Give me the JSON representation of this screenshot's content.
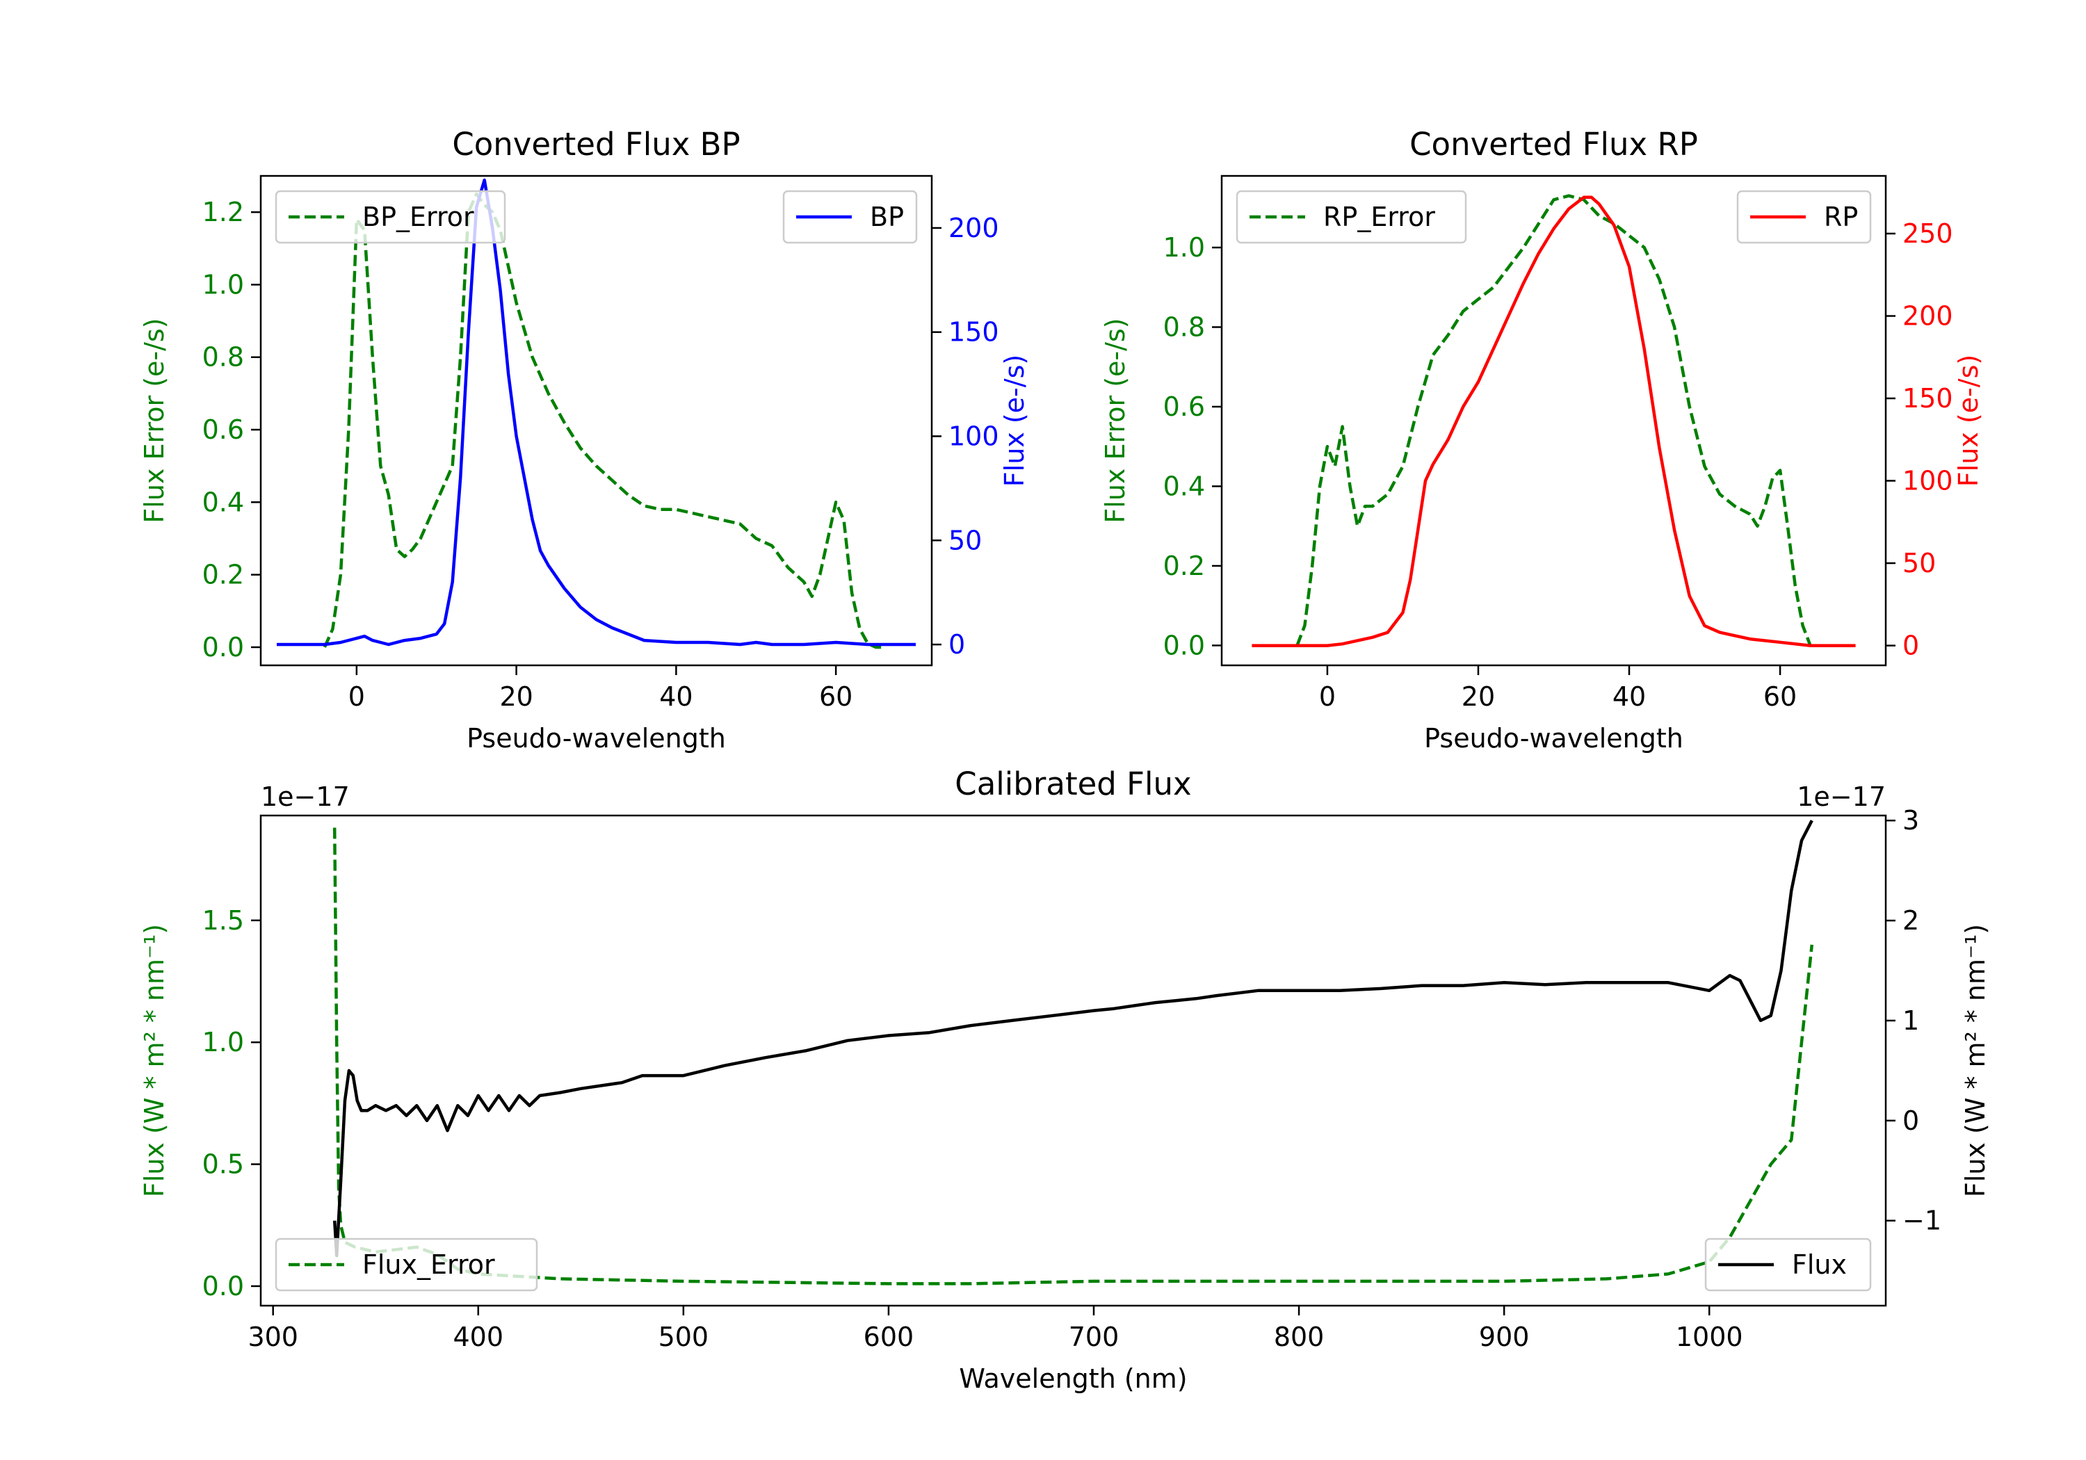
{
  "chart_data": [
    {
      "id": "bp",
      "type": "line",
      "title": "Converted Flux BP",
      "xlabel": "Pseudo-wavelength",
      "xlim": [
        -12,
        72
      ],
      "xticks": [
        0,
        20,
        40,
        60
      ],
      "xtick_labels": [
        "0",
        "20",
        "40",
        "60"
      ],
      "left_axis": {
        "label": "Flux Error (e-/s)",
        "color": "#008000",
        "ylim": [
          -0.05,
          1.3
        ],
        "ticks": [
          0.0,
          0.2,
          0.4,
          0.6,
          0.8,
          1.0,
          1.2
        ],
        "tick_labels": [
          "0.0",
          "0.2",
          "0.4",
          "0.6",
          "0.8",
          "1.0",
          "1.2"
        ]
      },
      "right_axis": {
        "label": "Flux (e-/s)",
        "color": "#0000ff",
        "ylim": [
          -10,
          225
        ],
        "ticks": [
          0,
          50,
          100,
          150,
          200
        ],
        "tick_labels": [
          "0",
          "50",
          "100",
          "150",
          "200"
        ]
      },
      "series": [
        {
          "name": "BP_Error",
          "axis": "left",
          "color": "#008000",
          "style": "dashed",
          "x": [
            -4,
            -3,
            -2,
            -1,
            0,
            1,
            2,
            3,
            4,
            5,
            6,
            7,
            8,
            9,
            10,
            11,
            12,
            13,
            14,
            15,
            16,
            17,
            18,
            19,
            20,
            22,
            24,
            26,
            28,
            30,
            32,
            34,
            36,
            38,
            40,
            42,
            44,
            46,
            48,
            50,
            52,
            54,
            56,
            57,
            58,
            59,
            60,
            61,
            62,
            63,
            64,
            65,
            66
          ],
          "y": [
            0.0,
            0.05,
            0.2,
            0.6,
            1.18,
            1.15,
            0.8,
            0.5,
            0.42,
            0.27,
            0.25,
            0.27,
            0.3,
            0.35,
            0.4,
            0.45,
            0.5,
            0.8,
            1.2,
            1.25,
            1.22,
            1.2,
            1.15,
            1.05,
            0.95,
            0.8,
            0.7,
            0.62,
            0.55,
            0.5,
            0.46,
            0.42,
            0.39,
            0.38,
            0.38,
            0.37,
            0.36,
            0.35,
            0.34,
            0.3,
            0.28,
            0.22,
            0.18,
            0.14,
            0.2,
            0.3,
            0.4,
            0.35,
            0.15,
            0.05,
            0.01,
            0.0,
            0.0
          ]
        },
        {
          "name": "BP",
          "axis": "right",
          "color": "#0000ff",
          "style": "solid",
          "x": [
            -10,
            -8,
            -6,
            -4,
            -2,
            0,
            1,
            2,
            3,
            4,
            6,
            8,
            10,
            11,
            12,
            13,
            14,
            15,
            16,
            17,
            18,
            19,
            20,
            21,
            22,
            23,
            24,
            26,
            28,
            30,
            32,
            34,
            36,
            40,
            44,
            48,
            50,
            52,
            56,
            60,
            64,
            68,
            70
          ],
          "y": [
            0,
            0,
            0,
            0,
            1,
            3,
            4,
            2,
            1,
            0,
            2,
            3,
            5,
            10,
            30,
            80,
            150,
            210,
            223,
            200,
            170,
            130,
            100,
            80,
            60,
            45,
            38,
            27,
            18,
            12,
            8,
            5,
            2,
            1,
            1,
            0,
            1,
            0,
            0,
            1,
            0,
            0,
            0
          ]
        }
      ],
      "legend_left": "upper left",
      "legend_right": "upper right"
    },
    {
      "id": "rp",
      "type": "line",
      "title": "Converted Flux RP",
      "xlabel": "Pseudo-wavelength",
      "xlim": [
        -14,
        74
      ],
      "xticks": [
        0,
        20,
        40,
        60
      ],
      "xtick_labels": [
        "0",
        "20",
        "40",
        "60"
      ],
      "left_axis": {
        "label": "Flux Error (e-/s)",
        "color": "#008000",
        "ylim": [
          -0.05,
          1.18
        ],
        "ticks": [
          0.0,
          0.2,
          0.4,
          0.6,
          0.8,
          1.0
        ],
        "tick_labels": [
          "0.0",
          "0.2",
          "0.4",
          "0.6",
          "0.8",
          "1.0"
        ]
      },
      "right_axis": {
        "label": "Flux (e-/s)",
        "color": "#ff0000",
        "ylim": [
          -12,
          285
        ],
        "ticks": [
          0,
          50,
          100,
          150,
          200,
          250
        ],
        "tick_labels": [
          "0",
          "50",
          "100",
          "150",
          "200",
          "250"
        ]
      },
      "series": [
        {
          "name": "RP_Error",
          "axis": "left",
          "color": "#008000",
          "style": "dashed",
          "x": [
            -4,
            -3,
            -2,
            -1,
            0,
            1,
            2,
            3,
            4,
            5,
            6,
            8,
            10,
            12,
            14,
            16,
            18,
            20,
            22,
            24,
            26,
            28,
            30,
            32,
            34,
            36,
            38,
            40,
            42,
            44,
            46,
            48,
            50,
            52,
            54,
            56,
            57,
            58,
            59,
            60,
            61,
            62,
            63,
            64
          ],
          "y": [
            0.0,
            0.05,
            0.2,
            0.4,
            0.5,
            0.45,
            0.55,
            0.4,
            0.3,
            0.35,
            0.35,
            0.38,
            0.45,
            0.6,
            0.73,
            0.78,
            0.84,
            0.87,
            0.9,
            0.95,
            1.0,
            1.06,
            1.12,
            1.13,
            1.12,
            1.08,
            1.06,
            1.03,
            1.0,
            0.92,
            0.8,
            0.6,
            0.45,
            0.38,
            0.35,
            0.33,
            0.3,
            0.35,
            0.42,
            0.44,
            0.3,
            0.15,
            0.05,
            0.0
          ]
        },
        {
          "name": "RP",
          "axis": "right",
          "color": "#ff0000",
          "style": "solid",
          "x": [
            -10,
            -5,
            0,
            2,
            4,
            6,
            8,
            10,
            11,
            12,
            13,
            14,
            16,
            18,
            20,
            22,
            24,
            26,
            28,
            30,
            32,
            34,
            35,
            36,
            38,
            40,
            42,
            44,
            46,
            48,
            50,
            52,
            54,
            56,
            60,
            64,
            70
          ],
          "y": [
            0,
            0,
            0,
            1,
            3,
            5,
            8,
            20,
            40,
            70,
            100,
            110,
            125,
            145,
            160,
            180,
            200,
            220,
            238,
            253,
            265,
            272,
            272,
            268,
            255,
            230,
            180,
            120,
            70,
            30,
            12,
            8,
            6,
            4,
            2,
            0,
            0
          ]
        }
      ],
      "legend_left": "upper left",
      "legend_right": "upper right"
    },
    {
      "id": "cal",
      "type": "line",
      "title": "Calibrated Flux",
      "xlabel": "Wavelength (nm)",
      "xlim": [
        294,
        1086
      ],
      "xticks": [
        300,
        400,
        500,
        600,
        700,
        800,
        900,
        1000
      ],
      "xtick_labels": [
        "300",
        "400",
        "500",
        "600",
        "700",
        "800",
        "900",
        "1000"
      ],
      "left_axis": {
        "label": "Flux (W * m² * nm⁻¹)",
        "color": "#008000",
        "ylim": [
          -0.08,
          1.93
        ],
        "offset_text": "1e−17",
        "ticks": [
          0.0,
          0.5,
          1.0,
          1.5
        ],
        "tick_labels": [
          "0.0",
          "0.5",
          "1.0",
          "1.5"
        ]
      },
      "right_axis": {
        "label": "Flux (W * m² * nm⁻¹)",
        "color": "#000000",
        "ylim": [
          -1.85,
          3.05
        ],
        "offset_text": "1e−17",
        "ticks": [
          -1,
          0,
          1,
          2,
          3
        ],
        "tick_labels": [
          "−1",
          "0",
          "1",
          "2",
          "3"
        ]
      },
      "series": [
        {
          "name": "Flux_Error",
          "axis": "left",
          "color": "#008000",
          "style": "dashed",
          "x": [
            330,
            331,
            332,
            333,
            335,
            340,
            350,
            360,
            370,
            380,
            390,
            400,
            420,
            440,
            500,
            600,
            640,
            700,
            800,
            900,
            950,
            980,
            1000,
            1010,
            1020,
            1030,
            1040,
            1045,
            1050
          ],
          "y": [
            1.88,
            1.0,
            0.4,
            0.25,
            0.18,
            0.16,
            0.14,
            0.15,
            0.16,
            0.13,
            0.07,
            0.05,
            0.04,
            0.03,
            0.02,
            0.01,
            0.01,
            0.02,
            0.02,
            0.02,
            0.03,
            0.05,
            0.1,
            0.2,
            0.35,
            0.5,
            0.6,
            1.0,
            1.4
          ]
        },
        {
          "name": "Flux",
          "axis": "right",
          "color": "#000000",
          "style": "solid",
          "x": [
            330,
            331,
            333,
            335,
            337,
            339,
            341,
            343,
            346,
            350,
            355,
            360,
            365,
            370,
            375,
            380,
            385,
            390,
            395,
            400,
            405,
            410,
            415,
            420,
            425,
            430,
            440,
            450,
            460,
            470,
            480,
            490,
            500,
            520,
            540,
            560,
            580,
            600,
            620,
            640,
            660,
            680,
            700,
            710,
            720,
            730,
            740,
            750,
            760,
            780,
            800,
            820,
            840,
            860,
            880,
            900,
            920,
            940,
            960,
            980,
            1000,
            1010,
            1015,
            1020,
            1025,
            1030,
            1035,
            1040,
            1045,
            1050
          ],
          "y": [
            -1.0,
            -1.35,
            -0.6,
            0.2,
            0.5,
            0.45,
            0.2,
            0.1,
            0.1,
            0.15,
            0.1,
            0.15,
            0.05,
            0.15,
            0.0,
            0.15,
            -0.1,
            0.15,
            0.05,
            0.25,
            0.1,
            0.25,
            0.1,
            0.25,
            0.15,
            0.25,
            0.28,
            0.32,
            0.35,
            0.38,
            0.45,
            0.45,
            0.45,
            0.55,
            0.63,
            0.7,
            0.8,
            0.85,
            0.88,
            0.95,
            1.0,
            1.05,
            1.1,
            1.12,
            1.15,
            1.18,
            1.2,
            1.22,
            1.25,
            1.3,
            1.3,
            1.3,
            1.32,
            1.35,
            1.35,
            1.38,
            1.36,
            1.38,
            1.38,
            1.38,
            1.3,
            1.45,
            1.4,
            1.2,
            1.0,
            1.05,
            1.5,
            2.3,
            2.8,
            3.0
          ]
        }
      ],
      "legend_left": "lower left",
      "legend_right": "lower right"
    }
  ]
}
